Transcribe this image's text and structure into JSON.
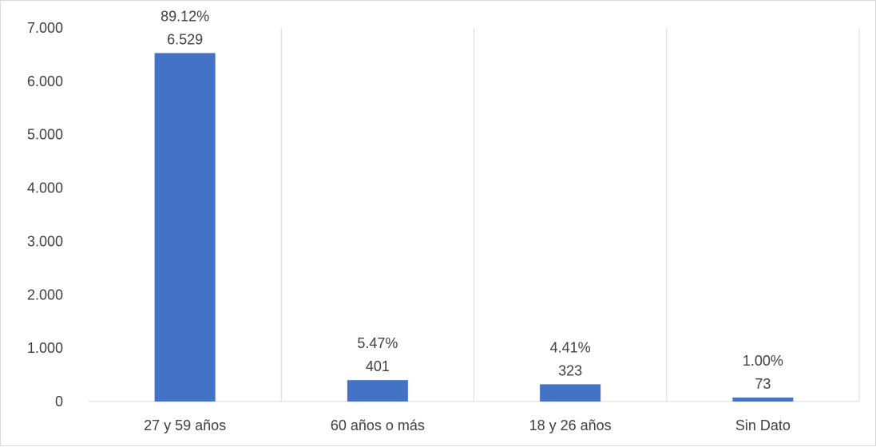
{
  "chart_data": {
    "type": "bar",
    "categories": [
      "27 y 59 años",
      "60 años o más",
      "18 y 26 años",
      "Sin Dato"
    ],
    "values": [
      6529,
      401,
      323,
      73
    ],
    "value_labels": [
      "6.529",
      "401",
      "323",
      "73"
    ],
    "percent_labels": [
      "89.12%",
      "5.47%",
      "4.41%",
      "1.00%"
    ],
    "ylim": [
      0,
      7000
    ],
    "yticks": [
      0,
      1000,
      2000,
      3000,
      4000,
      5000,
      6000,
      7000
    ],
    "ytick_labels": [
      "0",
      "1.000",
      "2.000",
      "3.000",
      "4.000",
      "5.000",
      "6.000",
      "7.000"
    ],
    "grid": "vertical category separators",
    "legend": "none",
    "bar_color": "#4472c4",
    "grid_color": "#d9d9d9",
    "text_color": "#404040"
  }
}
